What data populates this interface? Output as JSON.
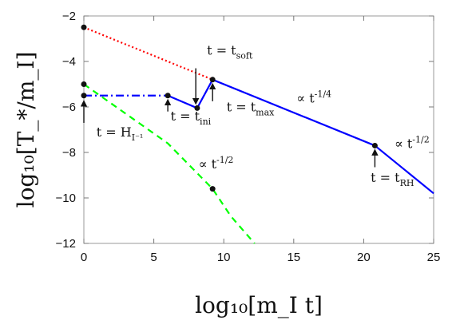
{
  "chart_data": {
    "type": "line",
    "xlabel": "log₁₀[m_I t]",
    "ylabel": "log₁₀[T_*/m_I]",
    "xlim": [
      0,
      25
    ],
    "ylim": [
      -12,
      -2
    ],
    "x_ticks": [
      0,
      5,
      10,
      15,
      20,
      25
    ],
    "y_ticks": [
      -12,
      -10,
      -8,
      -6,
      -4,
      -2
    ],
    "grid": false,
    "series": [
      {
        "color": "#ff0000",
        "style": "dotted",
        "points": [
          [
            0,
            -2.5
          ],
          [
            9.2,
            -4.8
          ]
        ]
      },
      {
        "color": "#0000ff",
        "style": "dash-dot",
        "points": [
          [
            0,
            -5.5
          ],
          [
            6,
            -5.5
          ]
        ]
      },
      {
        "color": "#0000ff",
        "style": "solid",
        "points": [
          [
            6,
            -5.5
          ],
          [
            8.1,
            -6.05
          ],
          [
            9.2,
            -4.8
          ],
          [
            20.8,
            -7.7
          ],
          [
            25,
            -9.8
          ]
        ]
      },
      {
        "color": "#00ff00",
        "style": "dashed",
        "points": [
          [
            0,
            -5.0
          ],
          [
            3,
            -6.3
          ],
          [
            6,
            -7.6
          ],
          [
            9.2,
            -9.6
          ],
          [
            10.5,
            -10.8
          ],
          [
            12.2,
            -12.0
          ]
        ]
      }
    ],
    "markers": [
      [
        0,
        -2.5
      ],
      [
        0,
        -5.0
      ],
      [
        0,
        -5.5
      ],
      [
        6,
        -5.5
      ],
      [
        8.1,
        -6.05
      ],
      [
        9.2,
        -4.8
      ],
      [
        9.2,
        -9.6
      ],
      [
        20.8,
        -7.7
      ]
    ],
    "annotations": [
      {
        "label": "t = H_I⁻¹",
        "arrow_from": [
          0,
          -6.7
        ],
        "arrow_to": [
          0,
          -5.75
        ],
        "text_at": [
          0.9,
          -7.3
        ]
      },
      {
        "label": "t = t_ini",
        "arrow_from": [
          6,
          -6.2
        ],
        "arrow_to": [
          6,
          -5.7
        ],
        "text_at": [
          6.2,
          -6.6
        ]
      },
      {
        "label": "t = t_soft",
        "arrow_from": [
          8,
          -4.3
        ],
        "arrow_to": [
          8,
          -5.85
        ],
        "text_at": [
          8.8,
          -3.7
        ]
      },
      {
        "label": "t = t_max",
        "arrow_from": [
          9.2,
          -5.75
        ],
        "arrow_to": [
          9.2,
          -5.0
        ],
        "text_at": [
          10.2,
          -6.2
        ]
      },
      {
        "label": "t = t_RH",
        "arrow_from": [
          20.8,
          -8.65
        ],
        "arrow_to": [
          20.8,
          -7.9
        ],
        "text_at": [
          20.5,
          -9.3
        ]
      },
      {
        "label": "∝ t^{-1/4}",
        "text_at": [
          15.2,
          -5.8
        ]
      },
      {
        "label": "∝ t^{-1/2}",
        "text_at": [
          22.2,
          -7.8
        ]
      },
      {
        "label": "∝ t^{-1/2}",
        "text_at": [
          8.2,
          -8.7
        ]
      }
    ]
  }
}
